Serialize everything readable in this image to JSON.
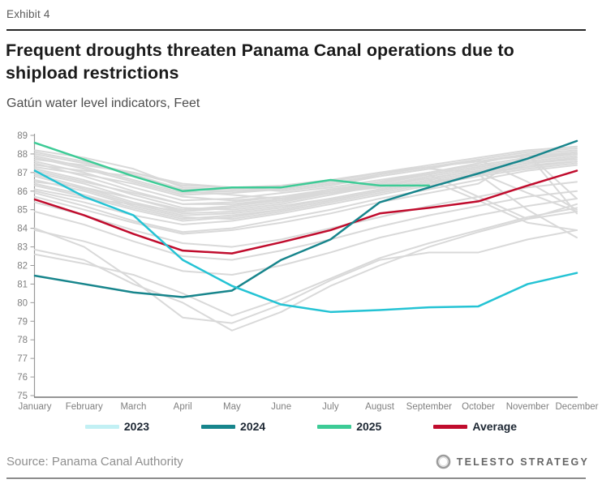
{
  "header": {
    "exhibit_label": "Exhibit 4",
    "title": "Frequent droughts threaten Panama Canal operations due to shipload restrictions",
    "subtitle": "Gatún water level indicators, Feet"
  },
  "chart_data": {
    "type": "line",
    "x": [
      "January",
      "February",
      "March",
      "April",
      "May",
      "June",
      "July",
      "August",
      "September",
      "October",
      "November",
      "December"
    ],
    "ylabel": "Feet",
    "ylim": [
      75,
      89
    ],
    "y_ticks": [
      75,
      76,
      77,
      78,
      79,
      80,
      81,
      82,
      83,
      84,
      85,
      86,
      87,
      88,
      89
    ],
    "grid": false,
    "legend_position": "bottom",
    "series": [
      {
        "name": "2023",
        "color": "#24c3d4",
        "values": [
          87.1,
          85.7,
          84.7,
          82.3,
          80.9,
          79.9,
          79.5,
          79.6,
          79.75,
          79.8,
          81.0,
          81.6
        ]
      },
      {
        "name": "2024",
        "color": "#17858c",
        "values": [
          81.45,
          81.0,
          80.55,
          80.3,
          80.65,
          82.3,
          83.4,
          85.4,
          86.2,
          86.95,
          87.75,
          88.7
        ]
      },
      {
        "name": "2025",
        "color": "#3dcb96",
        "values": [
          88.6,
          87.7,
          86.8,
          86.0,
          86.2,
          86.2,
          86.6,
          86.3,
          86.3
        ]
      },
      {
        "name": "Average",
        "color": "#c00c2d",
        "values": [
          85.55,
          84.7,
          83.7,
          82.8,
          82.65,
          83.25,
          83.9,
          84.8,
          85.1,
          85.45,
          86.3,
          87.1
        ]
      }
    ],
    "historical_color": "#d9d9d9",
    "historical_unlabeled_series": [
      [
        87.9,
        87.3,
        86.6,
        85.9,
        86.0,
        86.1,
        86.4,
        86.9,
        87.3,
        87.6,
        88.0,
        88.2
      ],
      [
        87.6,
        87.0,
        86.2,
        85.5,
        85.6,
        85.9,
        86.2,
        86.6,
        87.0,
        87.4,
        87.8,
        88.0
      ],
      [
        88.0,
        87.5,
        87.0,
        86.4,
        86.2,
        86.0,
        86.3,
        86.8,
        87.2,
        87.7,
        88.1,
        88.3
      ],
      [
        87.2,
        86.6,
        85.8,
        85.1,
        85.0,
        85.3,
        85.8,
        86.3,
        86.8,
        87.2,
        87.6,
        87.9
      ],
      [
        86.9,
        86.2,
        85.4,
        84.8,
        84.9,
        85.2,
        85.6,
        86.1,
        86.6,
        87.0,
        87.5,
        87.7
      ],
      [
        86.6,
        86.0,
        85.2,
        84.6,
        84.5,
        84.9,
        85.4,
        85.9,
        86.4,
        86.9,
        87.3,
        87.6
      ],
      [
        87.4,
        87.1,
        86.8,
        86.0,
        85.8,
        85.6,
        85.9,
        86.2,
        86.7,
        87.1,
        87.5,
        87.8
      ],
      [
        86.3,
        85.7,
        85.0,
        84.4,
        84.6,
        85.0,
        85.5,
        86.0,
        86.5,
        86.9,
        87.4,
        87.6
      ],
      [
        88.2,
        87.8,
        87.2,
        86.2,
        86.1,
        86.2,
        86.5,
        87.0,
        87.4,
        87.8,
        88.2,
        88.4
      ],
      [
        86.0,
        85.4,
        84.7,
        84.2,
        84.4,
        84.8,
        85.3,
        85.8,
        86.3,
        86.8,
        87.2,
        87.5
      ],
      [
        87.0,
        86.4,
        85.6,
        85.0,
        85.2,
        85.6,
        86.0,
        86.5,
        87.0,
        87.5,
        88.0,
        84.8
      ],
      [
        87.8,
        87.2,
        86.5,
        85.8,
        85.9,
        86.1,
        86.4,
        86.8,
        87.2,
        87.0,
        85.9,
        84.9
      ],
      [
        86.8,
        86.1,
        85.3,
        84.7,
        84.8,
        85.1,
        85.6,
        86.1,
        86.6,
        85.5,
        84.3,
        83.9
      ],
      [
        87.1,
        86.5,
        85.9,
        85.3,
        85.4,
        85.7,
        86.1,
        86.5,
        86.9,
        85.7,
        84.5,
        85.3
      ],
      [
        85.9,
        85.2,
        84.4,
        83.8,
        84.0,
        84.5,
        85.0,
        85.6,
        86.1,
        86.6,
        87.1,
        87.4
      ],
      [
        84.0,
        83.0,
        81.2,
        79.2,
        78.9,
        79.9,
        81.2,
        82.3,
        82.7,
        82.7,
        83.4,
        83.9
      ],
      [
        82.85,
        82.3,
        81.0,
        80.0,
        78.5,
        79.5,
        80.9,
        82.0,
        83.0,
        83.8,
        84.5,
        84.9
      ],
      [
        82.6,
        82.1,
        81.5,
        80.5,
        79.3,
        80.2,
        81.3,
        82.4,
        83.2,
        83.9,
        84.6,
        85.1
      ],
      [
        84.9,
        84.2,
        83.3,
        82.5,
        82.3,
        82.8,
        83.4,
        84.1,
        84.7,
        85.2,
        85.7,
        86.0
      ],
      [
        83.9,
        83.3,
        82.5,
        81.7,
        81.5,
        82.0,
        82.7,
        83.5,
        84.1,
        84.7,
        85.2,
        85.6
      ],
      [
        85.4,
        84.7,
        83.9,
        83.2,
        83.0,
        83.4,
        84.0,
        84.6,
        85.2,
        85.7,
        86.2,
        86.5
      ],
      [
        87.7,
        87.4,
        87.0,
        86.3,
        86.2,
        86.3,
        86.6,
        87.0,
        87.3,
        87.6,
        87.9,
        88.1
      ],
      [
        86.5,
        86.2,
        85.6,
        84.9,
        85.1,
        85.4,
        85.9,
        86.4,
        86.9,
        87.3,
        87.7,
        88.0
      ],
      [
        85.7,
        85.0,
        84.3,
        83.7,
        83.9,
        84.3,
        84.8,
        85.4,
        85.9,
        86.4,
        88.0,
        85.6
      ],
      [
        86.4,
        85.8,
        85.1,
        84.5,
        84.7,
        85.0,
        85.5,
        86.0,
        86.5,
        86.9,
        85.0,
        83.5
      ],
      [
        88.1,
        87.6,
        86.9,
        86.1,
        86.0,
        86.1,
        86.4,
        86.9,
        87.3,
        87.7,
        86.5,
        85.0
      ],
      [
        87.3,
        86.9,
        86.4,
        85.7,
        85.5,
        85.7,
        86.0,
        86.4,
        86.9,
        87.3,
        87.7,
        88.0
      ],
      [
        86.1,
        85.6,
        85.3,
        84.9,
        85.2,
        85.5,
        85.9,
        86.3,
        86.7,
        87.1,
        87.5,
        87.8
      ],
      [
        87.5,
        86.8,
        86.0,
        85.3,
        85.3,
        85.6,
        86.0,
        86.5,
        87.0,
        87.4,
        87.8,
        88.1
      ]
    ]
  },
  "legend": {
    "items": [
      {
        "label": "2023",
        "swatch_color": "#c2f0f4"
      },
      {
        "label": "2024",
        "swatch_color": "#17858c"
      },
      {
        "label": "2025",
        "swatch_color": "#3dcb96"
      },
      {
        "label": "Average",
        "swatch_color": "#c00c2d"
      }
    ]
  },
  "footer": {
    "source": "Source: Panama Canal Authority",
    "brand": "TELESTO STRATEGY"
  }
}
